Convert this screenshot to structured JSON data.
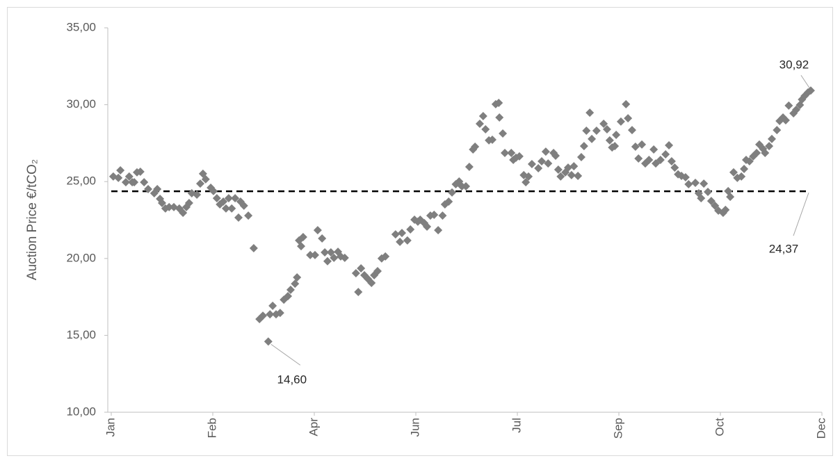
{
  "chart_data": {
    "type": "scatter",
    "y_axis_label": "Auction Price €/tCO₂",
    "color": "#7f7f7f",
    "marker": "diamond",
    "xlim": [
      0,
      210
    ],
    "xticks": [
      {
        "value": 0,
        "label": "Jan"
      },
      {
        "value": 30,
        "label": "Feb"
      },
      {
        "value": 60,
        "label": "Apr"
      },
      {
        "value": 90,
        "label": "Jun"
      },
      {
        "value": 120,
        "label": "Jul"
      },
      {
        "value": 150,
        "label": "Sep"
      },
      {
        "value": 180,
        "label": "Oct"
      },
      {
        "value": 210,
        "label": "Dec"
      }
    ],
    "ylim": [
      10,
      35
    ],
    "yticks": [
      {
        "value": 10,
        "label": "10,00"
      },
      {
        "value": 15,
        "label": "15,00"
      },
      {
        "value": 20,
        "label": "20,00"
      },
      {
        "value": 25,
        "label": "25,00"
      },
      {
        "value": 30,
        "label": "30,00"
      },
      {
        "value": 35,
        "label": "35,00"
      }
    ],
    "grid": false,
    "reference_line": {
      "value": 24.37,
      "label": "24,37"
    },
    "annotations": [
      {
        "value": 14.6,
        "label": "14,60"
      },
      {
        "value": 30.92,
        "label": "30,92"
      }
    ],
    "x": [
      0.6,
      2.1,
      2.7,
      4.3,
      5.3,
      6.2,
      6.8,
      7.6,
      8.6,
      9.7,
      10.9,
      12.7,
      13.6,
      14.4,
      15.0,
      16.0,
      17.1,
      18.5,
      20.1,
      21.2,
      22.2,
      23.0,
      23.8,
      25.3,
      26.3,
      27.1,
      27.9,
      29.4,
      30.2,
      31.2,
      32.1,
      33.1,
      33.9,
      34.7,
      35.6,
      36.6,
      37.6,
      38.2,
      39.2,
      40.5,
      42.1,
      43.8,
      44.8,
      46.4,
      46.9,
      47.7,
      48.7,
      49.9,
      51.0,
      52.2,
      53.0,
      54.3,
      54.9,
      55.5,
      56.1,
      56.7,
      58.8,
      60.2,
      61.0,
      62.3,
      63.1,
      63.9,
      64.9,
      65.8,
      67.0,
      67.8,
      69.0,
      72.3,
      73.0,
      73.8,
      74.8,
      75.8,
      76.9,
      77.7,
      78.7,
      79.9,
      81.0,
      84.0,
      85.3,
      85.9,
      87.5,
      88.4,
      89.6,
      90.6,
      91.3,
      92.5,
      93.3,
      94.3,
      95.4,
      96.6,
      97.9,
      98.6,
      99.7,
      100.7,
      101.8,
      102.8,
      103.6,
      104.8,
      105.8,
      106.9,
      107.5,
      108.9,
      109.9,
      110.6,
      111.6,
      112.6,
      113.6,
      114.5,
      114.7,
      115.7,
      116.3,
      118.2,
      118.8,
      119.6,
      120.6,
      121.9,
      122.5,
      123.3,
      124.3,
      126.2,
      127.2,
      128.4,
      129.1,
      130.7,
      131.3,
      132.1,
      132.8,
      134.2,
      135.0,
      136.0,
      136.7,
      137.9,
      138.9,
      139.7,
      140.4,
      141.4,
      142.0,
      143.4,
      145.5,
      146.5,
      147.3,
      148.0,
      148.8,
      149.2,
      150.6,
      152.1,
      152.7,
      153.9,
      154.9,
      155.8,
      156.8,
      157.8,
      158.9,
      160.3,
      160.9,
      162.3,
      163.8,
      164.8,
      165.6,
      166.5,
      167.5,
      168.5,
      169.7,
      170.6,
      172.6,
      173.6,
      174.3,
      175.1,
      176.3,
      177.3,
      178.4,
      179.4,
      180.8,
      181.5,
      182.3,
      182.9,
      183.9,
      185.0,
      186.2,
      187.0,
      187.6,
      188.6,
      189.7,
      190.7,
      191.5,
      192.6,
      193.2,
      194.4,
      195.2,
      196.7,
      197.5,
      198.5,
      199.3,
      200.2,
      201.6,
      202.4,
      203.5,
      204.1,
      204.9,
      205.9,
      206.7
    ],
    "values": [
      25.33,
      25.24,
      25.73,
      24.96,
      25.33,
      24.96,
      24.96,
      25.6,
      25.64,
      24.96,
      24.51,
      24.24,
      24.51,
      23.88,
      23.61,
      23.25,
      23.34,
      23.34,
      23.25,
      22.97,
      23.34,
      23.61,
      24.24,
      24.15,
      24.87,
      25.51,
      25.15,
      24.6,
      24.38,
      23.92,
      23.52,
      23.7,
      23.25,
      23.92,
      23.25,
      23.92,
      22.66,
      23.7,
      23.43,
      22.79,
      20.67,
      16.06,
      16.28,
      14.6,
      16.37,
      16.92,
      16.37,
      16.46,
      17.32,
      17.55,
      17.96,
      18.36,
      18.77,
      21.17,
      20.8,
      21.39,
      20.22,
      20.22,
      21.84,
      21.3,
      20.4,
      19.82,
      20.4,
      20.04,
      20.44,
      20.13,
      20.04,
      19.04,
      17.82,
      19.36,
      18.91,
      18.68,
      18.41,
      18.91,
      19.18,
      20.0,
      20.13,
      21.57,
      21.08,
      21.66,
      21.17,
      21.89,
      22.52,
      22.39,
      22.52,
      22.3,
      22.07,
      22.79,
      22.84,
      21.84,
      22.79,
      23.52,
      23.7,
      24.29,
      24.83,
      25.01,
      24.69,
      24.69,
      25.96,
      27.09,
      27.27,
      28.76,
      29.26,
      28.4,
      27.68,
      27.72,
      30.03,
      30.12,
      29.17,
      28.13,
      26.86,
      26.86,
      26.41,
      26.55,
      26.64,
      25.42,
      24.96,
      25.33,
      26.14,
      25.87,
      26.32,
      26.95,
      26.18,
      26.86,
      26.68,
      25.78,
      25.33,
      25.6,
      25.91,
      25.42,
      26.0,
      25.37,
      26.59,
      27.31,
      28.31,
      29.48,
      27.77,
      28.31,
      28.76,
      28.4,
      27.68,
      27.22,
      27.31,
      28.04,
      28.9,
      30.03,
      29.12,
      28.35,
      27.27,
      26.5,
      27.41,
      26.18,
      26.41,
      27.09,
      26.18,
      26.41,
      26.77,
      27.36,
      26.32,
      25.91,
      25.47,
      25.37,
      25.28,
      24.83,
      24.92,
      24.24,
      23.92,
      24.87,
      24.33,
      23.74,
      23.43,
      23.11,
      22.97,
      23.16,
      24.38,
      24.01,
      25.6,
      25.24,
      25.33,
      25.82,
      26.41,
      26.32,
      26.64,
      26.86,
      27.41,
      27.13,
      26.86,
      27.31,
      27.77,
      28.35,
      28.94,
      29.17,
      28.99,
      29.94,
      29.44,
      29.67,
      29.98,
      30.34,
      30.57,
      30.8,
      30.92
    ]
  }
}
